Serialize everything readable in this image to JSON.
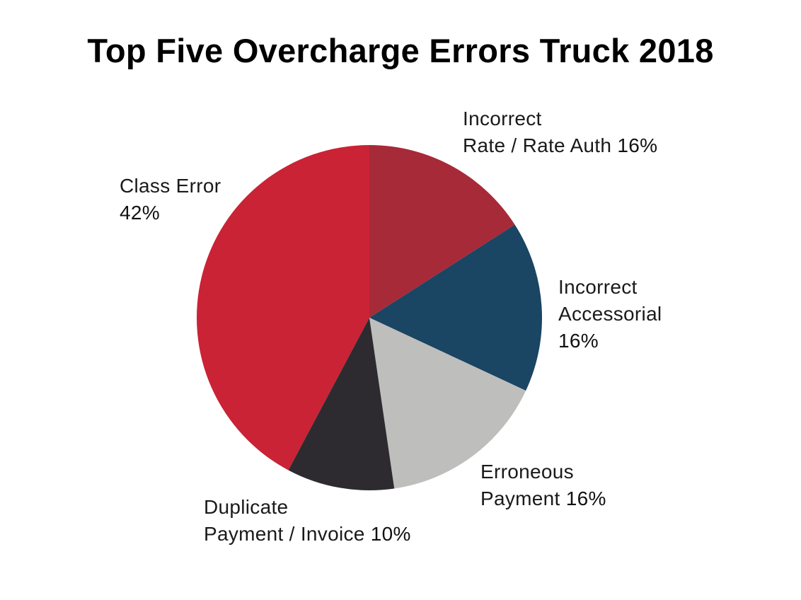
{
  "chart_data": {
    "type": "pie",
    "title": "Top Five Overcharge Errors Truck 2018",
    "center": [
      522,
      449
    ],
    "radius": 244,
    "start_angle_deg": 0,
    "direction": "clockwise",
    "slices": [
      {
        "name": "Incorrect Rate / Rate Auth",
        "label_lines": [
          "Incorrect",
          "Rate / Rate Auth"
        ],
        "value": 16,
        "value_label": "16%",
        "color": "#A72A38",
        "end_angle_deg": 57.4
      },
      {
        "name": "Incorrect Accessorial",
        "label_lines": [
          "Incorrect",
          "Accessorial"
        ],
        "value": 16,
        "value_label": "16%",
        "color": "#1A4563",
        "end_angle_deg": 115
      },
      {
        "name": "Erroneous Payment",
        "label_lines": [
          "Erroneous",
          "Payment"
        ],
        "value": 16,
        "value_label": "16%",
        "color": "#BEBEBD",
        "end_angle_deg": 171.7
      },
      {
        "name": "Duplicate Payment / Invoice",
        "label_lines": [
          "Duplicate",
          "Payment / Invoice"
        ],
        "value": 10,
        "value_label": "10%",
        "color": "#2E2B30",
        "end_angle_deg": 208
      },
      {
        "name": "Class Error",
        "label_lines": [
          "Class Error"
        ],
        "value": 42,
        "value_label": "42%",
        "color": "#C92335",
        "end_angle_deg": 360
      }
    ],
    "legend": "none (direct labels)"
  },
  "labels": {
    "rate": {
      "line1": "Incorrect",
      "line2": "Rate / Rate Auth",
      "pct": "16%"
    },
    "accessorial": {
      "line1": "Incorrect",
      "line2": "Accessorial",
      "pct": "16%"
    },
    "erroneous": {
      "line1": "Erroneous",
      "line2": "Payment",
      "pct": "16%"
    },
    "duplicate": {
      "line1": "Duplicate",
      "line2": "Payment / Invoice",
      "pct": "10%"
    },
    "class": {
      "line1": "Class Error",
      "pct": "42%"
    }
  }
}
